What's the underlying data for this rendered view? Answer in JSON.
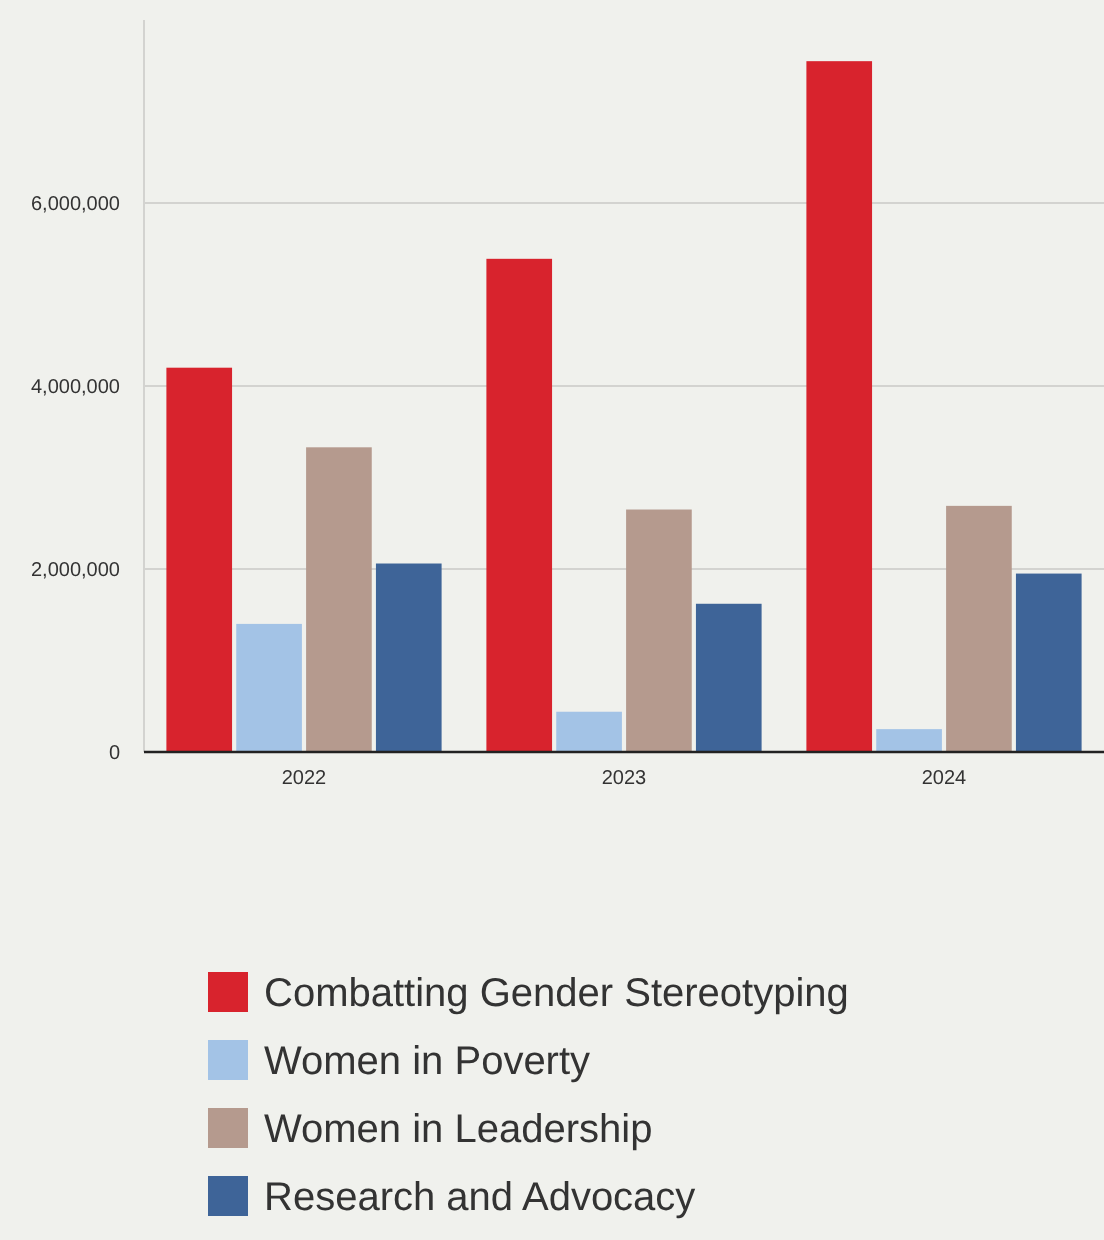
{
  "chart_data": {
    "type": "bar",
    "categories": [
      "2022",
      "2023",
      "2024"
    ],
    "series": [
      {
        "name": "Combatting Gender Stereotyping",
        "color": "#d8232d",
        "values": [
          4200000,
          5390000,
          7550000
        ]
      },
      {
        "name": "Women in Poverty",
        "color": "#a3c3e6",
        "values": [
          1400000,
          440000,
          250000
        ]
      },
      {
        "name": "Women in Leadership",
        "color": "#b59a8e",
        "values": [
          3330000,
          2650000,
          2690000
        ]
      },
      {
        "name": "Research and Advocacy",
        "color": "#3e6498",
        "values": [
          2060000,
          1620000,
          1950000
        ]
      }
    ],
    "ylim": [
      0,
      8000000
    ],
    "yticks": [
      {
        "value": 0,
        "label": "0"
      },
      {
        "value": 2000000,
        "label": "2,000,000"
      },
      {
        "value": 4000000,
        "label": "4,000,000"
      },
      {
        "value": 6000000,
        "label": "6,000,000"
      }
    ],
    "grid": "y",
    "legend": "bottom"
  }
}
